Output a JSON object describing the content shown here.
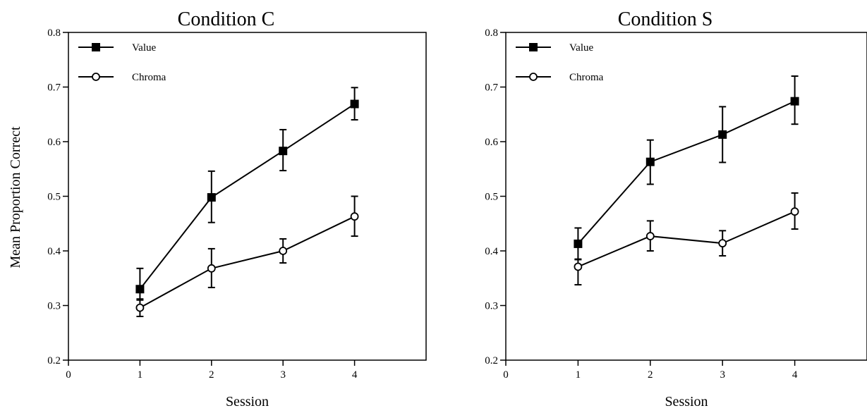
{
  "chart_data": [
    {
      "type": "line",
      "title": "Condition C",
      "xlabel": "Session",
      "ylabel": "Mean Proportion Correct",
      "xlim": [
        0,
        5
      ],
      "ylim": [
        0.2,
        0.8
      ],
      "x_ticks": [
        "0",
        "1",
        "2",
        "3",
        "4"
      ],
      "y_ticks": [
        "0.2",
        "0.3",
        "0.4",
        "0.5",
        "0.6",
        "0.7",
        "0.8"
      ],
      "grid": false,
      "legend_position": "top-left",
      "x": [
        1,
        2,
        3,
        4
      ],
      "series": [
        {
          "name": "Value",
          "marker": "filled-square",
          "values": [
            0.33,
            0.498,
            0.583,
            0.669
          ],
          "err_up": [
            0.368,
            0.546,
            0.622,
            0.699
          ],
          "err_down": [
            0.31,
            0.452,
            0.547,
            0.64
          ]
        },
        {
          "name": "Chroma",
          "marker": "open-circle",
          "values": [
            0.296,
            0.368,
            0.4,
            0.463
          ],
          "err_up": [
            0.312,
            0.404,
            0.422,
            0.5
          ],
          "err_down": [
            0.28,
            0.333,
            0.378,
            0.427
          ]
        }
      ]
    },
    {
      "type": "line",
      "title": "Condition S",
      "xlabel": "Session",
      "ylabel": "",
      "xlim": [
        0,
        5
      ],
      "ylim": [
        0.2,
        0.8
      ],
      "x_ticks": [
        "0",
        "1",
        "2",
        "3",
        "4"
      ],
      "y_ticks": [
        "0.2",
        "0.3",
        "0.4",
        "0.5",
        "0.6",
        "0.7",
        "0.8"
      ],
      "grid": false,
      "legend_position": "top-left",
      "x": [
        1,
        2,
        3,
        4
      ],
      "series": [
        {
          "name": "Value",
          "marker": "filled-square",
          "values": [
            0.413,
            0.563,
            0.613,
            0.674
          ],
          "err_up": [
            0.442,
            0.603,
            0.664,
            0.72
          ],
          "err_down": [
            0.385,
            0.522,
            0.562,
            0.632
          ]
        },
        {
          "name": "Chroma",
          "marker": "open-circle",
          "values": [
            0.371,
            0.427,
            0.414,
            0.472
          ],
          "err_up": [
            0.384,
            0.455,
            0.437,
            0.506
          ],
          "err_down": [
            0.338,
            0.4,
            0.391,
            0.44
          ]
        }
      ]
    }
  ]
}
